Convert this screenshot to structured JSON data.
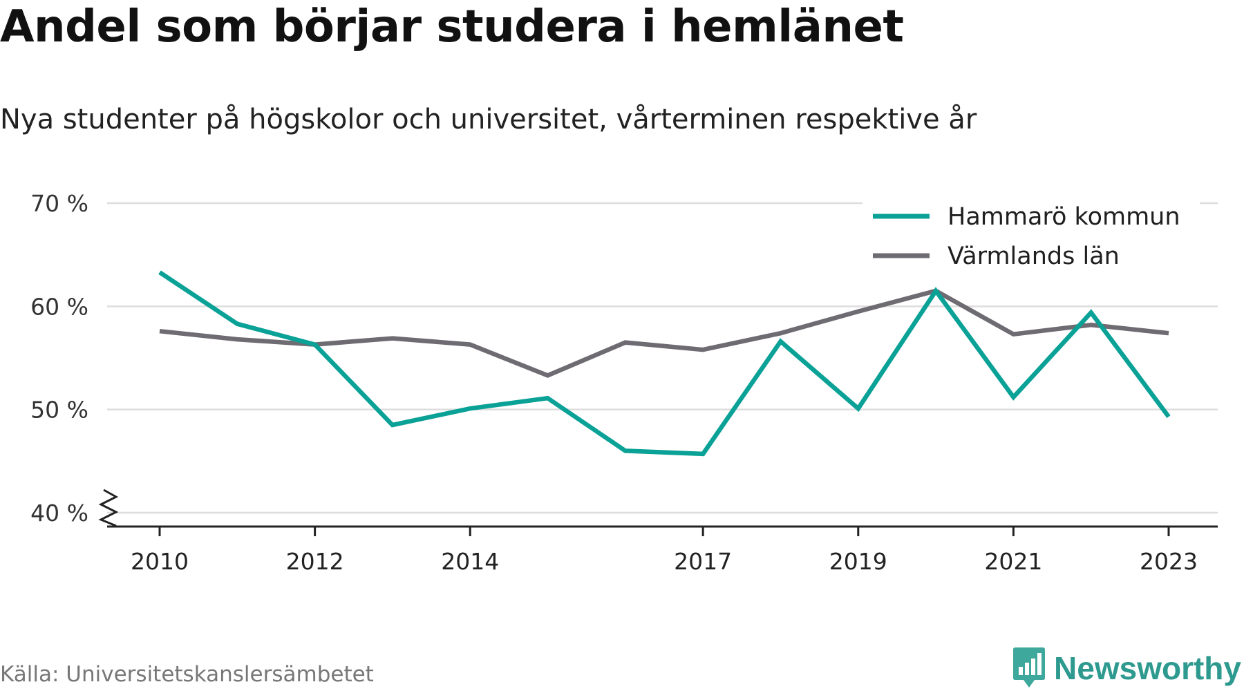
{
  "chart_data": {
    "type": "line",
    "title": "Andel som börjar studera i hemlänet",
    "subtitle": "Nya studenter på högskolor och universitet, vårterminen respektive år",
    "x": [
      2010,
      2011,
      2012,
      2013,
      2014,
      2015,
      2016,
      2017,
      2018,
      2019,
      2020,
      2021,
      2022,
      2023
    ],
    "x_tick_labels": [
      "2010",
      "2012",
      "2014",
      "2017",
      "2019",
      "2021",
      "2023"
    ],
    "y_tick_labels": [
      "70 %",
      "60 %",
      "50 %",
      "40 %"
    ],
    "ylim": [
      40,
      70
    ],
    "y_ticks": [
      40,
      50,
      60,
      70
    ],
    "y_axis_break": true,
    "grid": true,
    "legend_position": "top-right",
    "series": [
      {
        "name": "Hammarö kommun",
        "color": "#0aa197",
        "values": [
          63.3,
          58.3,
          56.3,
          48.5,
          50.1,
          51.1,
          46.0,
          45.7,
          56.6,
          50.1,
          61.5,
          51.2,
          59.4,
          49.3
        ]
      },
      {
        "name": "Värmlands län",
        "color": "#6e6b72",
        "values": [
          57.6,
          56.8,
          56.3,
          56.9,
          56.3,
          53.3,
          56.5,
          55.8,
          57.4,
          59.5,
          61.5,
          57.3,
          58.2,
          57.4
        ]
      }
    ]
  },
  "footer": {
    "source": "Källa: Universitetskanslersämbetet",
    "brand": "Newsworthy"
  }
}
